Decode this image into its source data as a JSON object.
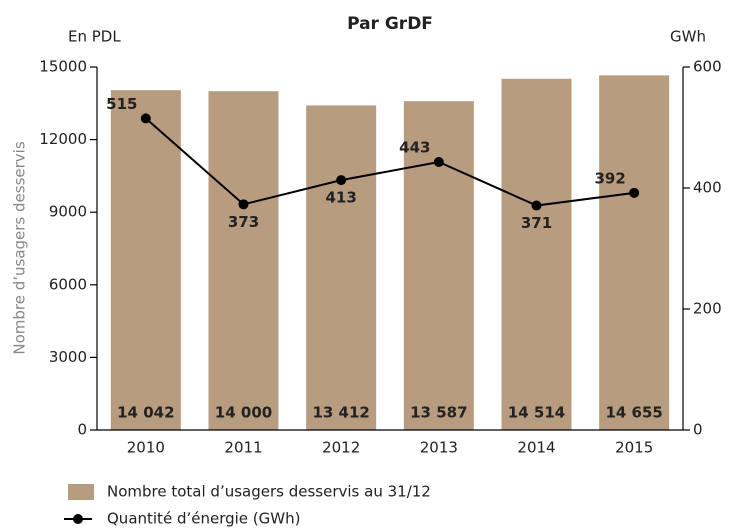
{
  "chart_data": {
    "type": "bar-line",
    "title": "Par GrDF",
    "y_unit": "En PDL",
    "y2_unit": "GWh",
    "ylabel": "Nombre d’usagers desservis",
    "categories": [
      "2010",
      "2011",
      "2012",
      "2013",
      "2014",
      "2015"
    ],
    "ylim": [
      0,
      15000
    ],
    "yticks": [
      0,
      3000,
      6000,
      9000,
      12000,
      15000
    ],
    "y2lim": [
      0,
      600
    ],
    "y2ticks": [
      0,
      200,
      400,
      600
    ],
    "grid": false,
    "series": [
      {
        "name": "Nombre total d’usagers desservis au 31/12",
        "type": "bar",
        "color": "#b89c7f",
        "values": [
          14042,
          14000,
          13412,
          13587,
          14514,
          14655
        ],
        "value_labels": [
          "14 042",
          "14 000",
          "13 412",
          "13 587",
          "14 514",
          "14 655"
        ]
      },
      {
        "name": "Quantité d’énergie (GWh)",
        "type": "line",
        "axis": "y2",
        "color": "#000000",
        "values": [
          515,
          373,
          413,
          443,
          371,
          392
        ]
      }
    ]
  }
}
